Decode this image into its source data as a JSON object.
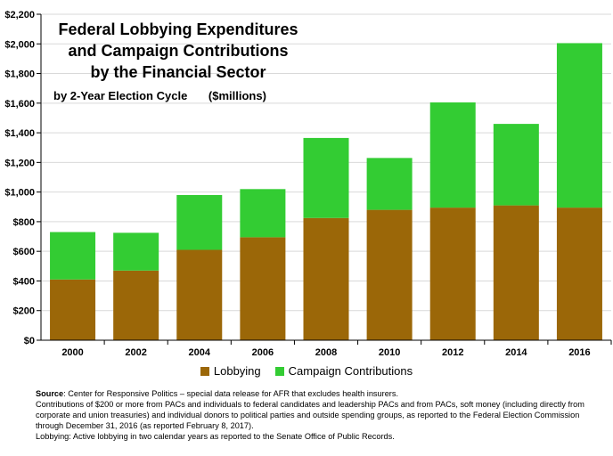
{
  "colors": {
    "lobbying": "#9b6708",
    "campaign": "#33cc33",
    "axis": "#000000",
    "grid": "#d9d9d9"
  },
  "title": {
    "line1": "Federal Lobbying Expenditures",
    "line2": "and Campaign Contributions",
    "line3": "by the Financial Sector",
    "subtitle": "by 2-Year Election Cycle",
    "units": "($millions)"
  },
  "legend": {
    "lobbying": "Lobbying",
    "campaign": "Campaign Contributions"
  },
  "footnote": {
    "source_label": "Source",
    "source_text": ": Center for Responsive Politics  –  special data release for AFR that excludes health insurers.",
    "line2": "Contributions of $200 or more from PACs and individuals to federal candidates and leadership PACs and from PACs, soft money (including directly from corporate and union treasuries) and individual donors to political parties and outside spending groups, as reported to the Federal Election Commission through December 31, 2016 (as reported February 8, 2017).",
    "line3": "Lobbying: Active lobbying in two calendar years as reported to the Senate Office of Public Records."
  },
  "chart_data": {
    "type": "bar",
    "stacked": true,
    "categories": [
      "2000",
      "2002",
      "2004",
      "2006",
      "2008",
      "2010",
      "2012",
      "2014",
      "2016"
    ],
    "series": [
      {
        "name": "Lobbying",
        "values": [
          410,
          470,
          610,
          695,
          825,
          880,
          895,
          910,
          895
        ]
      },
      {
        "name": "Campaign Contributions",
        "values": [
          320,
          255,
          370,
          325,
          540,
          350,
          710,
          550,
          1110
        ]
      }
    ],
    "ylim": [
      0,
      2200
    ],
    "yticks": [
      0,
      200,
      400,
      600,
      800,
      1000,
      1200,
      1400,
      1600,
      1800,
      2000,
      2200
    ],
    "ytick_labels": [
      "$0",
      "$200",
      "$400",
      "$600",
      "$800",
      "$1,000",
      "$1,200",
      "$1,400",
      "$1,600",
      "$1,800",
      "$2,000",
      "$2,200"
    ],
    "grid": true,
    "legend_position": "bottom"
  }
}
